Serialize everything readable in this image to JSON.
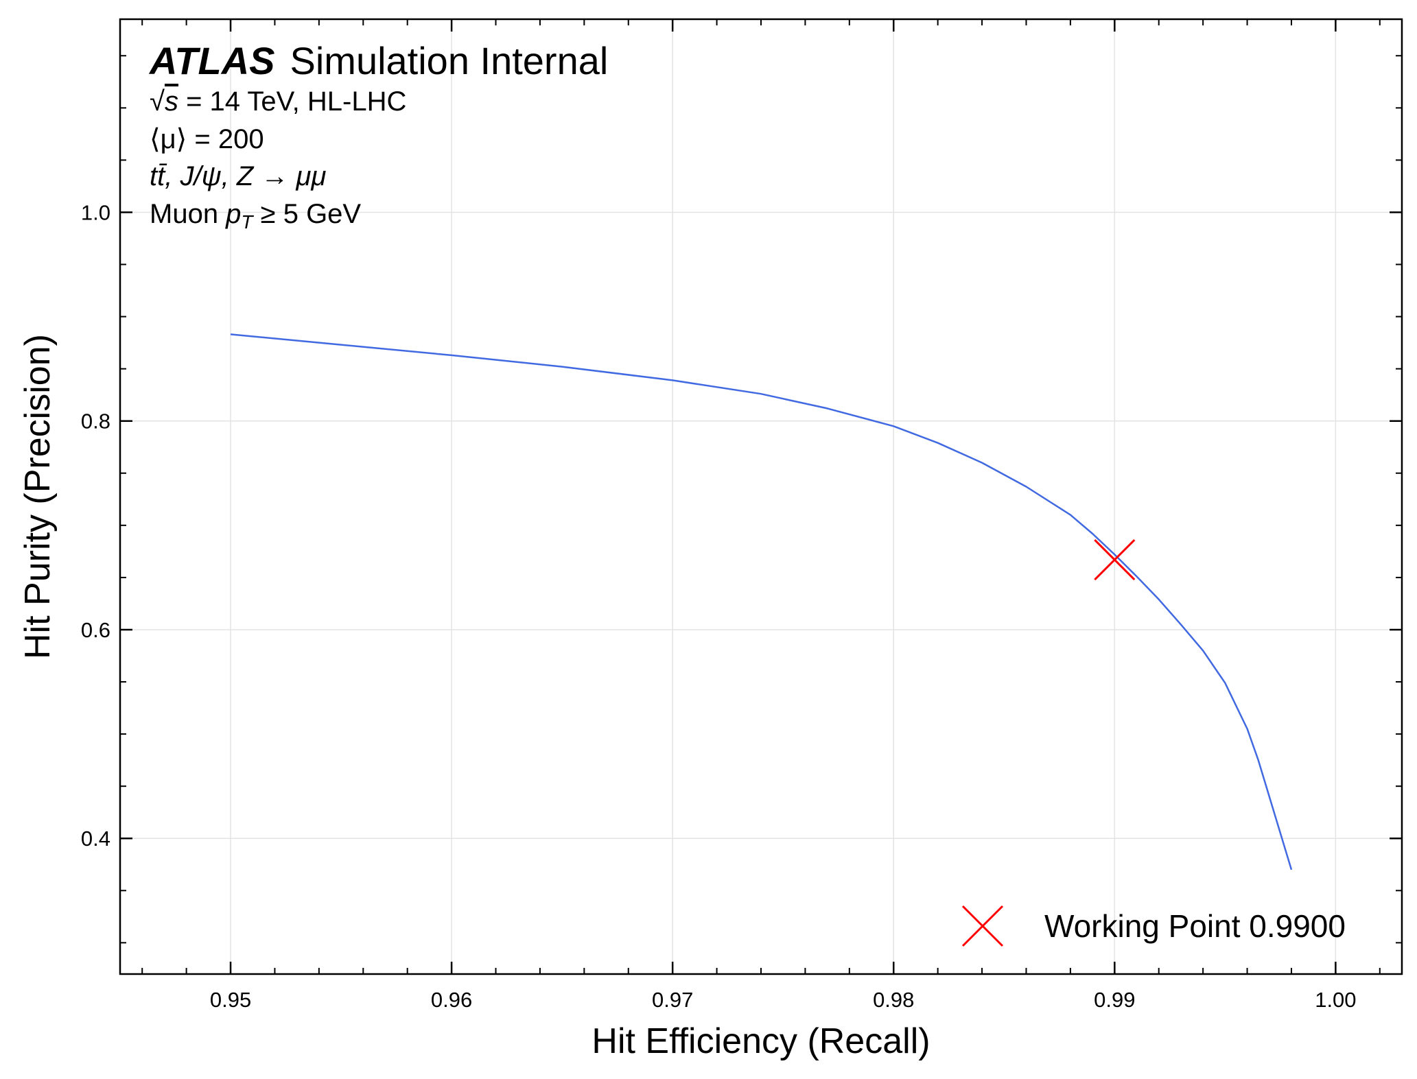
{
  "chart_data": {
    "type": "line",
    "title": "",
    "xlabel": "Hit Efficiency (Recall)",
    "ylabel": "Hit Purity (Precision)",
    "xlim": [
      0.945,
      1.003
    ],
    "ylim": [
      0.27,
      1.185
    ],
    "x_ticks": [
      0.95,
      0.96,
      0.97,
      0.98,
      0.99,
      1.0
    ],
    "x_tick_labels": [
      "0.95",
      "0.96",
      "0.97",
      "0.98",
      "0.99",
      "1.00"
    ],
    "y_ticks": [
      0.4,
      0.6,
      0.8,
      1.0
    ],
    "y_tick_labels": [
      "0.4",
      "0.6",
      "0.8",
      "1.0"
    ],
    "grid": true,
    "series": [
      {
        "color": "#4169e1",
        "x": [
          0.95,
          0.955,
          0.96,
          0.965,
          0.97,
          0.974,
          0.977,
          0.98,
          0.982,
          0.984,
          0.986,
          0.988,
          0.989,
          0.99,
          0.991,
          0.992,
          0.993,
          0.994,
          0.995,
          0.996,
          0.9965,
          0.997,
          0.9975,
          0.998
        ],
        "y": [
          0.883,
          0.873,
          0.863,
          0.852,
          0.839,
          0.826,
          0.812,
          0.795,
          0.779,
          0.76,
          0.737,
          0.71,
          0.692,
          0.672,
          0.651,
          0.629,
          0.605,
          0.58,
          0.549,
          0.505,
          0.475,
          0.44,
          0.405,
          0.37
        ]
      }
    ],
    "markers": [
      {
        "label": "Working Point 0.9900",
        "x": 0.99,
        "y": 0.667,
        "marker": "x",
        "color": "#ff0000"
      }
    ],
    "legend_position": "bottom-right"
  },
  "annotations": {
    "atlas_label": "ATLAS",
    "atlas_sub": "Simulation Internal",
    "energy_sqrt": "√",
    "energy_s": "s",
    "energy_text": " = 14 TeV, HL-LHC",
    "pileup": "⟨μ⟩ = 200",
    "process": "tt̄, J/ψ, Z → μμ",
    "cut_prefix": "Muon ",
    "cut_p": "p",
    "cut_sub": "T",
    "cut_suffix": " ≥ 5 GeV"
  }
}
